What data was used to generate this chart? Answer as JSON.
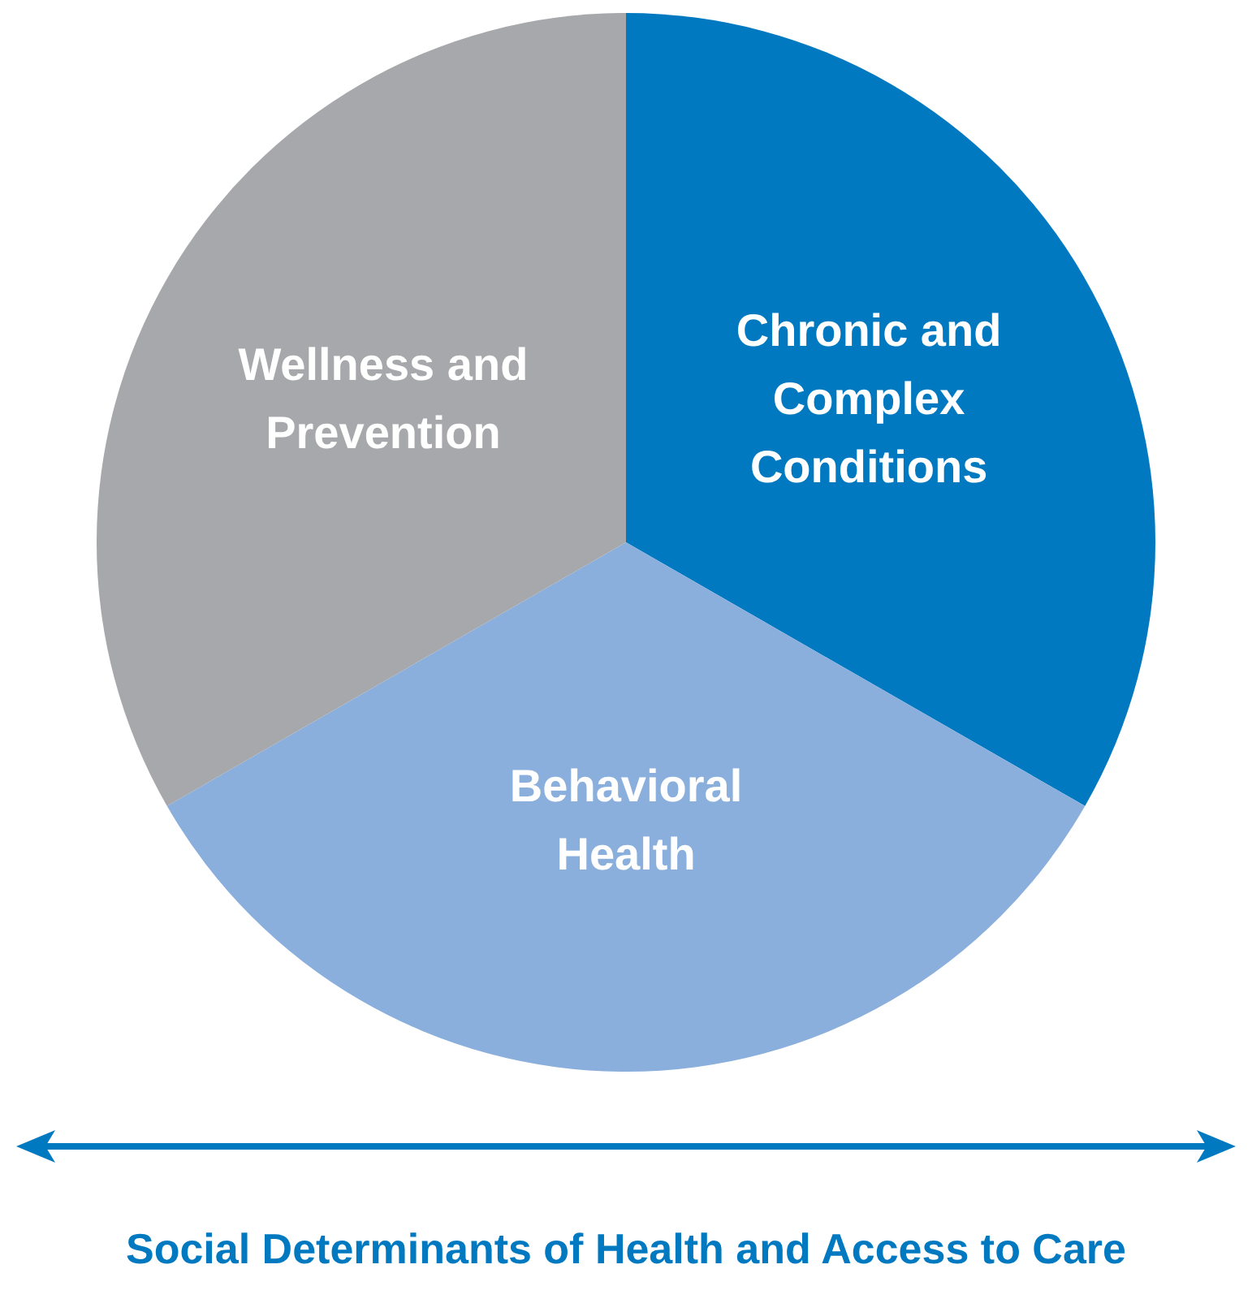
{
  "chart_data": {
    "type": "pie",
    "categories": [
      "Chronic and Complex Conditions",
      "Behavioral Health",
      "Wellness and Prevention"
    ],
    "values": [
      33.3,
      33.4,
      33.3
    ],
    "colors": [
      "#0079c1",
      "#8aafdc",
      "#a7a8ab"
    ],
    "legend": false,
    "annotations": [
      "Social Determinants of Health and Access to Care"
    ]
  }
}
